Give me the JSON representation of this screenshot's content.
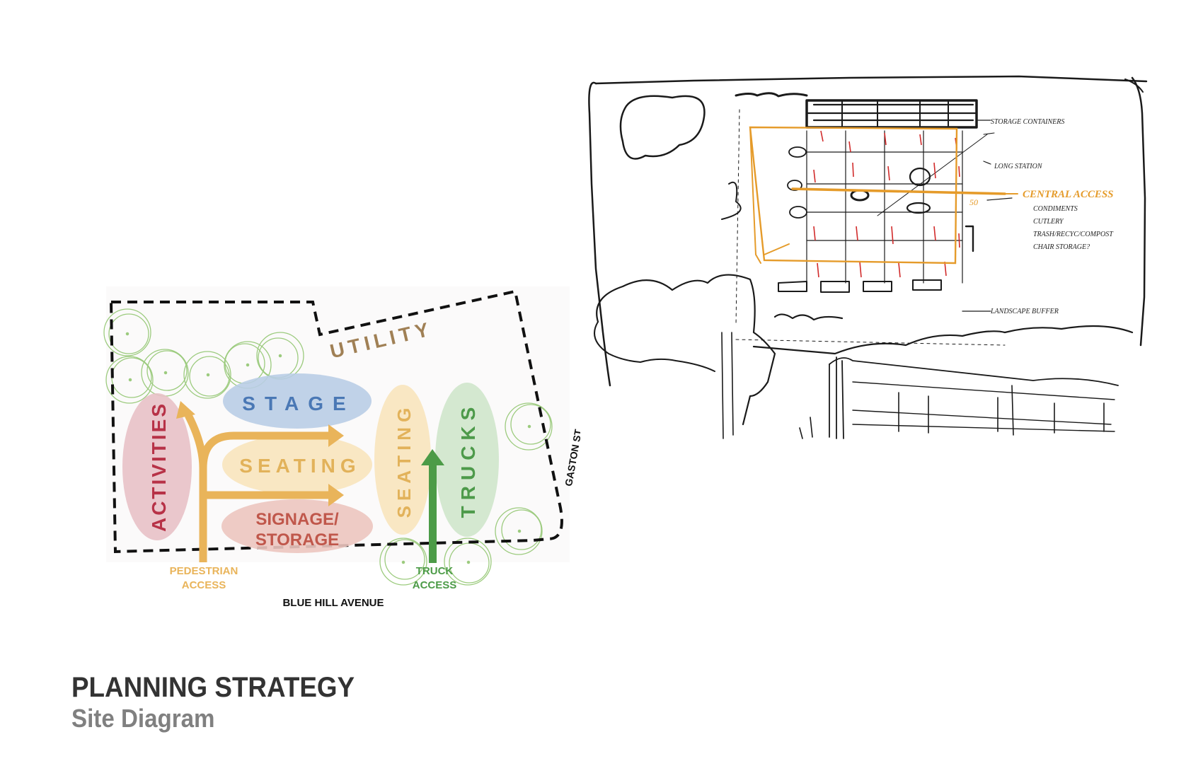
{
  "title": {
    "heading": "PLANNING STRATEGY",
    "subheading": "Site Diagram"
  },
  "site_diagram": {
    "zones": {
      "utility": "UTILITY",
      "stage": "STAGE",
      "seating_center": "SEATING",
      "seating_vertical": "SEATING",
      "trucks": "TRUCKS",
      "activities": "ACTIVITIES",
      "signage_line1": "SIGNAGE/",
      "signage_line2": "STORAGE"
    },
    "access": {
      "pedestrian_line1": "PEDESTRIAN",
      "pedestrian_line2": "ACCESS",
      "truck_line1": "TRUCK",
      "truck_line2": "ACCESS"
    },
    "streets": {
      "south": "BLUE HILL AVENUE",
      "east": "GASTON ST"
    },
    "colors": {
      "stage": "#b9cde6",
      "stage_text": "#4a78b5",
      "seating": "#f8e4bd",
      "seating_text": "#e2b25a",
      "trucks": "#cfe6cb",
      "trucks_text": "#4d9a4a",
      "activities": "#e8c1c6",
      "activities_text": "#b73247",
      "signage": "#ecc5bf",
      "signage_text": "#c0574b",
      "utility_text": "#a08055",
      "pedestrian_arrow": "#e9b45a",
      "truck_arrow": "#4c9b47",
      "tree": "#9ccb7e"
    }
  },
  "sketch": {
    "labels": {
      "storage": "STORAGE CONTAINERS",
      "stage_label": "LONG STATION",
      "access": "CENTRAL ACCESS",
      "l1": "CONDIMENTS",
      "l2": "CUTLERY",
      "l3": "TRASH/RECYC/COMPOST",
      "l4": "CHAIR STORAGE?",
      "bottom": "LANDSCAPE BUFFER",
      "dim": "50"
    }
  }
}
